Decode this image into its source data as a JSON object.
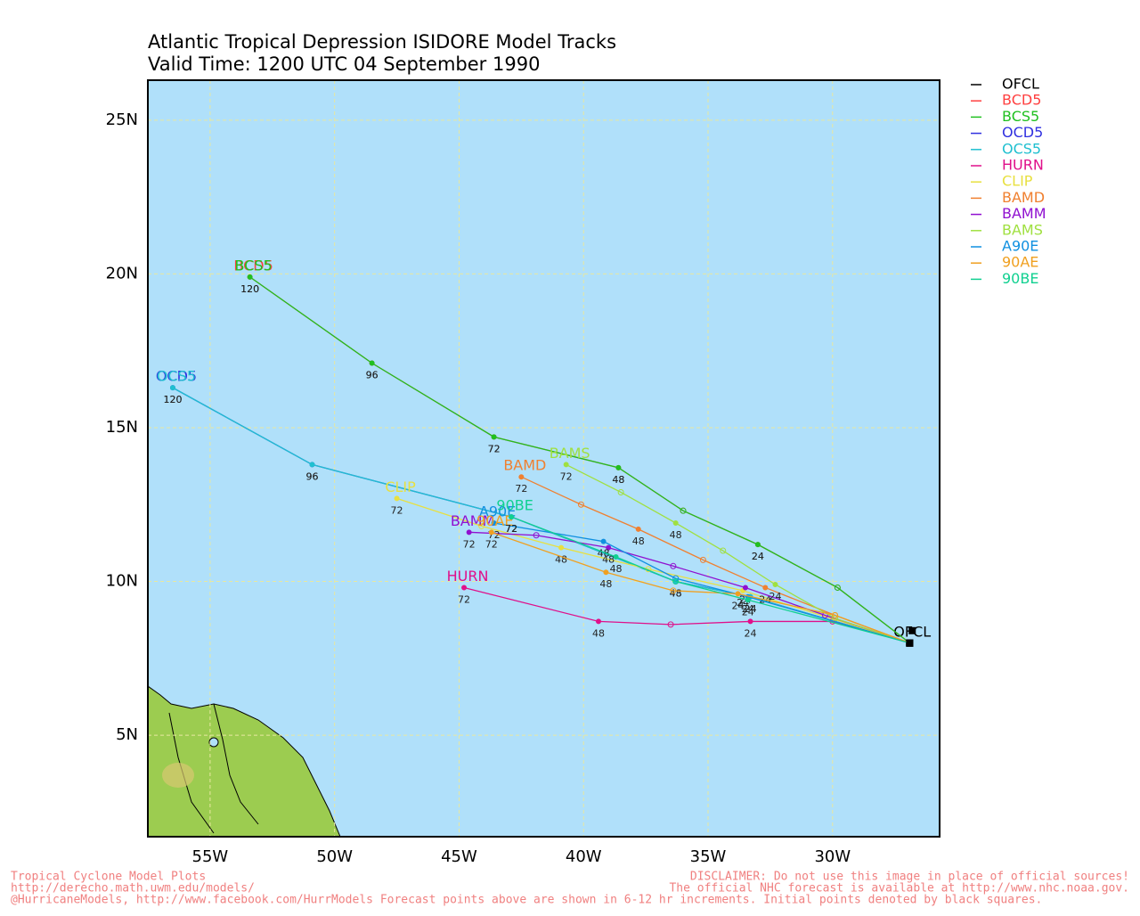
{
  "chart_data": {
    "type": "track",
    "title": "Atlantic Tropical Depression ISIDORE Model Tracks",
    "subtitle": "Valid Time: 1200 UTC 04 September 1990",
    "xlim": [
      -57.5,
      -25.7
    ],
    "ylim": [
      1.7,
      26.3
    ],
    "grid": true,
    "xticks": [
      {
        "value": -55,
        "label": "55W"
      },
      {
        "value": -50,
        "label": "50W"
      },
      {
        "value": -45,
        "label": "45W"
      },
      {
        "value": -40,
        "label": "40W"
      },
      {
        "value": -35,
        "label": "35W"
      },
      {
        "value": -30,
        "label": "30W"
      }
    ],
    "yticks": [
      {
        "value": 5,
        "label": "5N"
      },
      {
        "value": 10,
        "label": "10N"
      },
      {
        "value": 15,
        "label": "15N"
      },
      {
        "value": 20,
        "label": "20N"
      },
      {
        "value": 25,
        "label": "25N"
      }
    ],
    "series": [
      {
        "name": "OFCL",
        "color": "#000000",
        "x": [
          -26.8
        ],
        "y": [
          8.4
        ],
        "point_labels": [
          null
        ]
      },
      {
        "name": "BCD5",
        "color": "#ff4040",
        "x": [
          -26.9,
          -29.8,
          -33.0,
          -36.0,
          -38.6,
          -43.6,
          -48.5,
          -53.4
        ],
        "y": [
          8.0,
          9.8,
          11.2,
          12.3,
          13.7,
          14.7,
          17.1,
          19.9
        ],
        "point_labels": [
          null,
          null,
          "24",
          null,
          "48",
          "72",
          "96",
          "120"
        ]
      },
      {
        "name": "BCS5",
        "color": "#20c020",
        "x": [
          -26.9,
          -29.8,
          -33.0,
          -36.0,
          -38.6,
          -43.6,
          -48.5,
          -53.4
        ],
        "y": [
          8.0,
          9.8,
          11.2,
          12.3,
          13.7,
          14.7,
          17.1,
          19.9
        ],
        "point_labels": [
          null,
          null,
          "24",
          null,
          "48",
          "72",
          "96",
          "120"
        ]
      },
      {
        "name": "OCD5",
        "color": "#3030e0",
        "x": [
          -26.9,
          -33.3,
          -36.3,
          -42.9,
          -50.9,
          -56.5
        ],
        "y": [
          8.0,
          9.5,
          10.0,
          12.1,
          13.8,
          16.3
        ],
        "point_labels": [
          null,
          "24",
          "48",
          "72",
          "96",
          "120"
        ]
      },
      {
        "name": "OCS5",
        "color": "#20c0d0",
        "x": [
          -26.9,
          -33.3,
          -36.3,
          -42.9,
          -50.9,
          -56.5
        ],
        "y": [
          8.0,
          9.5,
          10.0,
          12.1,
          13.8,
          16.3
        ],
        "point_labels": [
          null,
          "24",
          "48",
          "72",
          "96",
          "120"
        ]
      },
      {
        "name": "HURN",
        "color": "#e0108a",
        "x": [
          -26.9,
          -30.0,
          -33.3,
          -36.5,
          -39.4,
          -44.8
        ],
        "y": [
          8.0,
          8.7,
          8.7,
          8.6,
          8.7,
          9.8
        ],
        "point_labels": [
          null,
          null,
          "24",
          null,
          "48",
          "72"
        ]
      },
      {
        "name": "CLIP",
        "color": "#e8e040",
        "x": [
          -26.9,
          -33.6,
          -37.4,
          -40.9,
          -44.1,
          -47.5
        ],
        "y": [
          8.0,
          9.7,
          10.4,
          11.1,
          11.8,
          12.7
        ],
        "point_labels": [
          null,
          "24",
          null,
          "48",
          null,
          "72"
        ]
      },
      {
        "name": "BAMD",
        "color": "#f08030",
        "x": [
          -26.9,
          -29.9,
          -32.7,
          -35.2,
          -37.8,
          -40.1,
          -42.5
        ],
        "y": [
          8.0,
          8.9,
          9.8,
          10.7,
          11.7,
          12.5,
          13.4
        ],
        "point_labels": [
          null,
          null,
          "24",
          null,
          "48",
          null,
          "72"
        ]
      },
      {
        "name": "BAMM",
        "color": "#9010d0",
        "x": [
          -26.9,
          -30.3,
          -33.5,
          -36.4,
          -39.0,
          -41.9,
          -44.6
        ],
        "y": [
          8.0,
          8.9,
          9.8,
          10.5,
          11.1,
          11.5,
          11.6
        ],
        "point_labels": [
          null,
          null,
          "24",
          null,
          "48",
          null,
          "72"
        ]
      },
      {
        "name": "BAMS",
        "color": "#a0e040",
        "x": [
          -26.9,
          -29.9,
          -32.3,
          -34.4,
          -36.3,
          -38.5,
          -40.7
        ],
        "y": [
          8.0,
          8.8,
          9.9,
          11.0,
          11.9,
          12.9,
          13.8
        ],
        "point_labels": [
          null,
          null,
          "24",
          null,
          "48",
          null,
          "72"
        ]
      },
      {
        "name": "A90E",
        "color": "#1090e0",
        "x": [
          -26.9,
          -33.4,
          -36.3,
          -39.2,
          -43.6
        ],
        "y": [
          8.0,
          9.5,
          10.1,
          11.3,
          11.9
        ],
        "point_labels": [
          null,
          "24",
          null,
          "48",
          "72"
        ]
      },
      {
        "name": "90AE",
        "color": "#f0a020",
        "x": [
          -26.9,
          -29.9,
          -33.8,
          -36.4,
          -39.1,
          -43.7
        ],
        "y": [
          8.0,
          8.9,
          9.6,
          9.7,
          10.3,
          11.6
        ],
        "point_labels": [
          null,
          null,
          "24",
          null,
          "48",
          "72"
        ]
      },
      {
        "name": "90BE",
        "color": "#10d090",
        "x": [
          -26.9,
          -33.4,
          -36.3,
          -38.7,
          -42.9
        ],
        "y": [
          8.0,
          9.4,
          10.0,
          10.8,
          12.1
        ],
        "point_labels": [
          null,
          "24",
          null,
          "48",
          "72"
        ]
      }
    ]
  },
  "footer": {
    "left": [
      "Tropical Cyclone Model Plots",
      "http://derecho.math.uwm.edu/models/",
      "@HurricaneModels, http://www.facebook.com/HurrModels  Forecast points above are shown in 6-12 hr increments. Initial points denoted by black squares."
    ],
    "right": [
      "DISCLAIMER: Do not use this image in place of official sources!",
      "The official NHC forecast is available at http://www.nhc.noaa.gov."
    ]
  }
}
